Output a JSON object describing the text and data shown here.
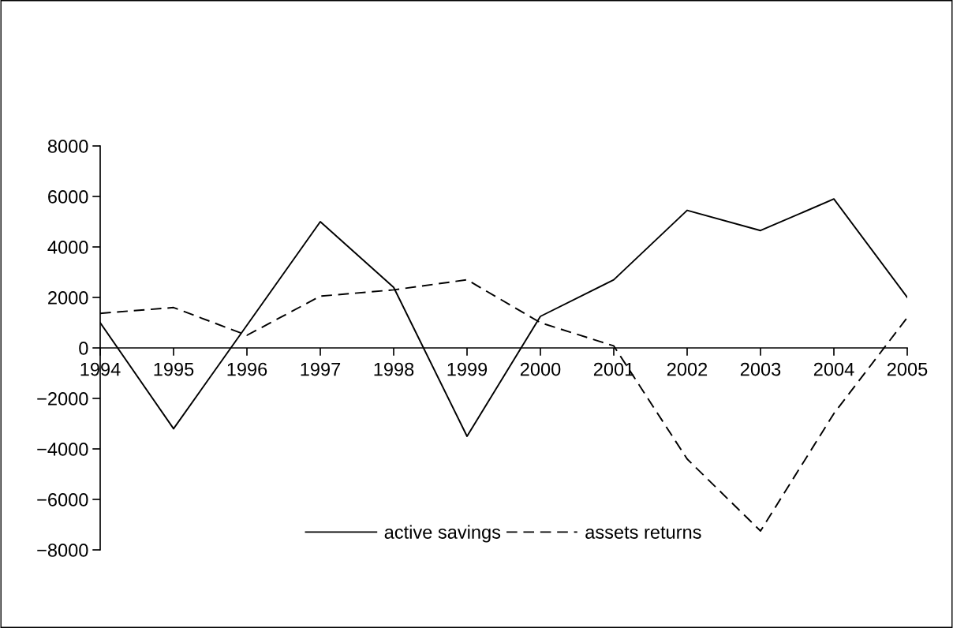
{
  "chart_data": {
    "type": "line",
    "categories": [
      "1994",
      "1995",
      "1996",
      "1997",
      "1998",
      "1999",
      "2000",
      "2001",
      "2002",
      "2003",
      "2004",
      "2005"
    ],
    "series": [
      {
        "name": "active savings",
        "color": "#000000",
        "line_style": "solid",
        "values": [
          1000,
          -3200,
          900,
          5000,
          2400,
          -3500,
          1250,
          2700,
          5450,
          4650,
          5900,
          2000
        ]
      },
      {
        "name": "assets returns",
        "color": "#000000",
        "line_style": "dashed",
        "values": [
          1370,
          1600,
          500,
          2050,
          2300,
          2700,
          1000,
          80,
          -4400,
          -7250,
          -2600,
          1200
        ]
      }
    ],
    "ylim": [
      -8000,
      8000
    ],
    "yticks": [
      {
        "value": 8000,
        "label": "8000"
      },
      {
        "value": 6000,
        "label": "6000"
      },
      {
        "value": 4000,
        "label": "4000"
      },
      {
        "value": 2000,
        "label": "2000"
      },
      {
        "value": 0,
        "label": "0"
      },
      {
        "value": -2000,
        "label": "−2000"
      },
      {
        "value": -4000,
        "label": "−4000"
      },
      {
        "value": -6000,
        "label": "−6000"
      },
      {
        "value": -8000,
        "label": "−8000"
      }
    ],
    "grid": false,
    "legend": "bottom"
  }
}
